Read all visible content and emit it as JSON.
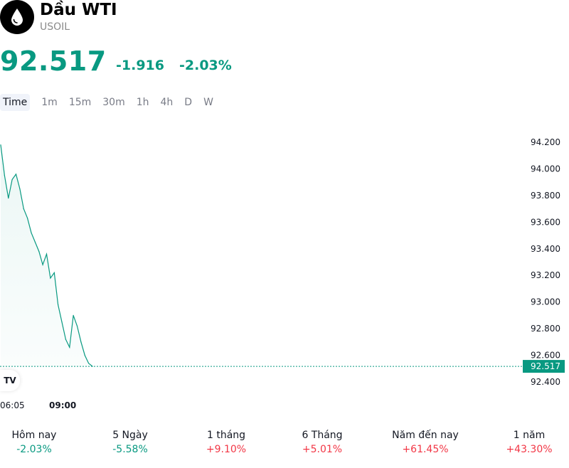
{
  "header": {
    "title": "Dầu WTI",
    "symbol": "USOIL",
    "logo_icon": "oil-drop-icon"
  },
  "quote": {
    "price": "92.517",
    "change": "-1.916",
    "change_pct": "-2.03%",
    "color": "#089981"
  },
  "intervals": [
    "Time",
    "1m",
    "15m",
    "30m",
    "1h",
    "4h",
    "D",
    "W"
  ],
  "active_interval": "Time",
  "chart_data": {
    "type": "area",
    "ylim": [
      92.32,
      94.32
    ],
    "y_ticks": [
      "94.200",
      "94.000",
      "93.800",
      "93.600",
      "93.400",
      "93.200",
      "93.000",
      "92.800",
      "92.600",
      "92.400"
    ],
    "x_ticks": [
      "06:05",
      "09:00"
    ],
    "last_price_label": "92.517",
    "last_price": 92.517,
    "line_color": "#089981",
    "x": [
      "06:05",
      "06:15",
      "06:25",
      "06:35",
      "06:45",
      "06:55",
      "07:05",
      "07:15",
      "07:25",
      "07:35",
      "07:45",
      "07:55",
      "08:05",
      "08:15",
      "08:25",
      "08:35",
      "08:45",
      "08:55",
      "09:05",
      "09:15",
      "09:25",
      "09:35",
      "09:45",
      "09:55",
      "10:05"
    ],
    "values": [
      94.18,
      93.95,
      93.78,
      93.92,
      93.96,
      93.85,
      93.7,
      93.63,
      93.52,
      93.45,
      93.38,
      93.28,
      93.36,
      93.18,
      93.22,
      92.98,
      92.85,
      92.72,
      92.66,
      92.9,
      92.82,
      92.7,
      92.6,
      92.54,
      92.517
    ]
  },
  "performance": [
    {
      "label": "Hôm nay",
      "value": "-2.03%",
      "dir": "neg"
    },
    {
      "label": "5 Ngày",
      "value": "-5.58%",
      "dir": "neg"
    },
    {
      "label": "1 tháng",
      "value": "+9.10%",
      "dir": "pos"
    },
    {
      "label": "6 Tháng",
      "value": "+5.01%",
      "dir": "pos"
    },
    {
      "label": "Năm đến nay",
      "value": "+61.45%",
      "dir": "pos"
    },
    {
      "label": "1 năm",
      "value": "+43.30%",
      "dir": "pos"
    }
  ],
  "tv_logo_text": "TV"
}
